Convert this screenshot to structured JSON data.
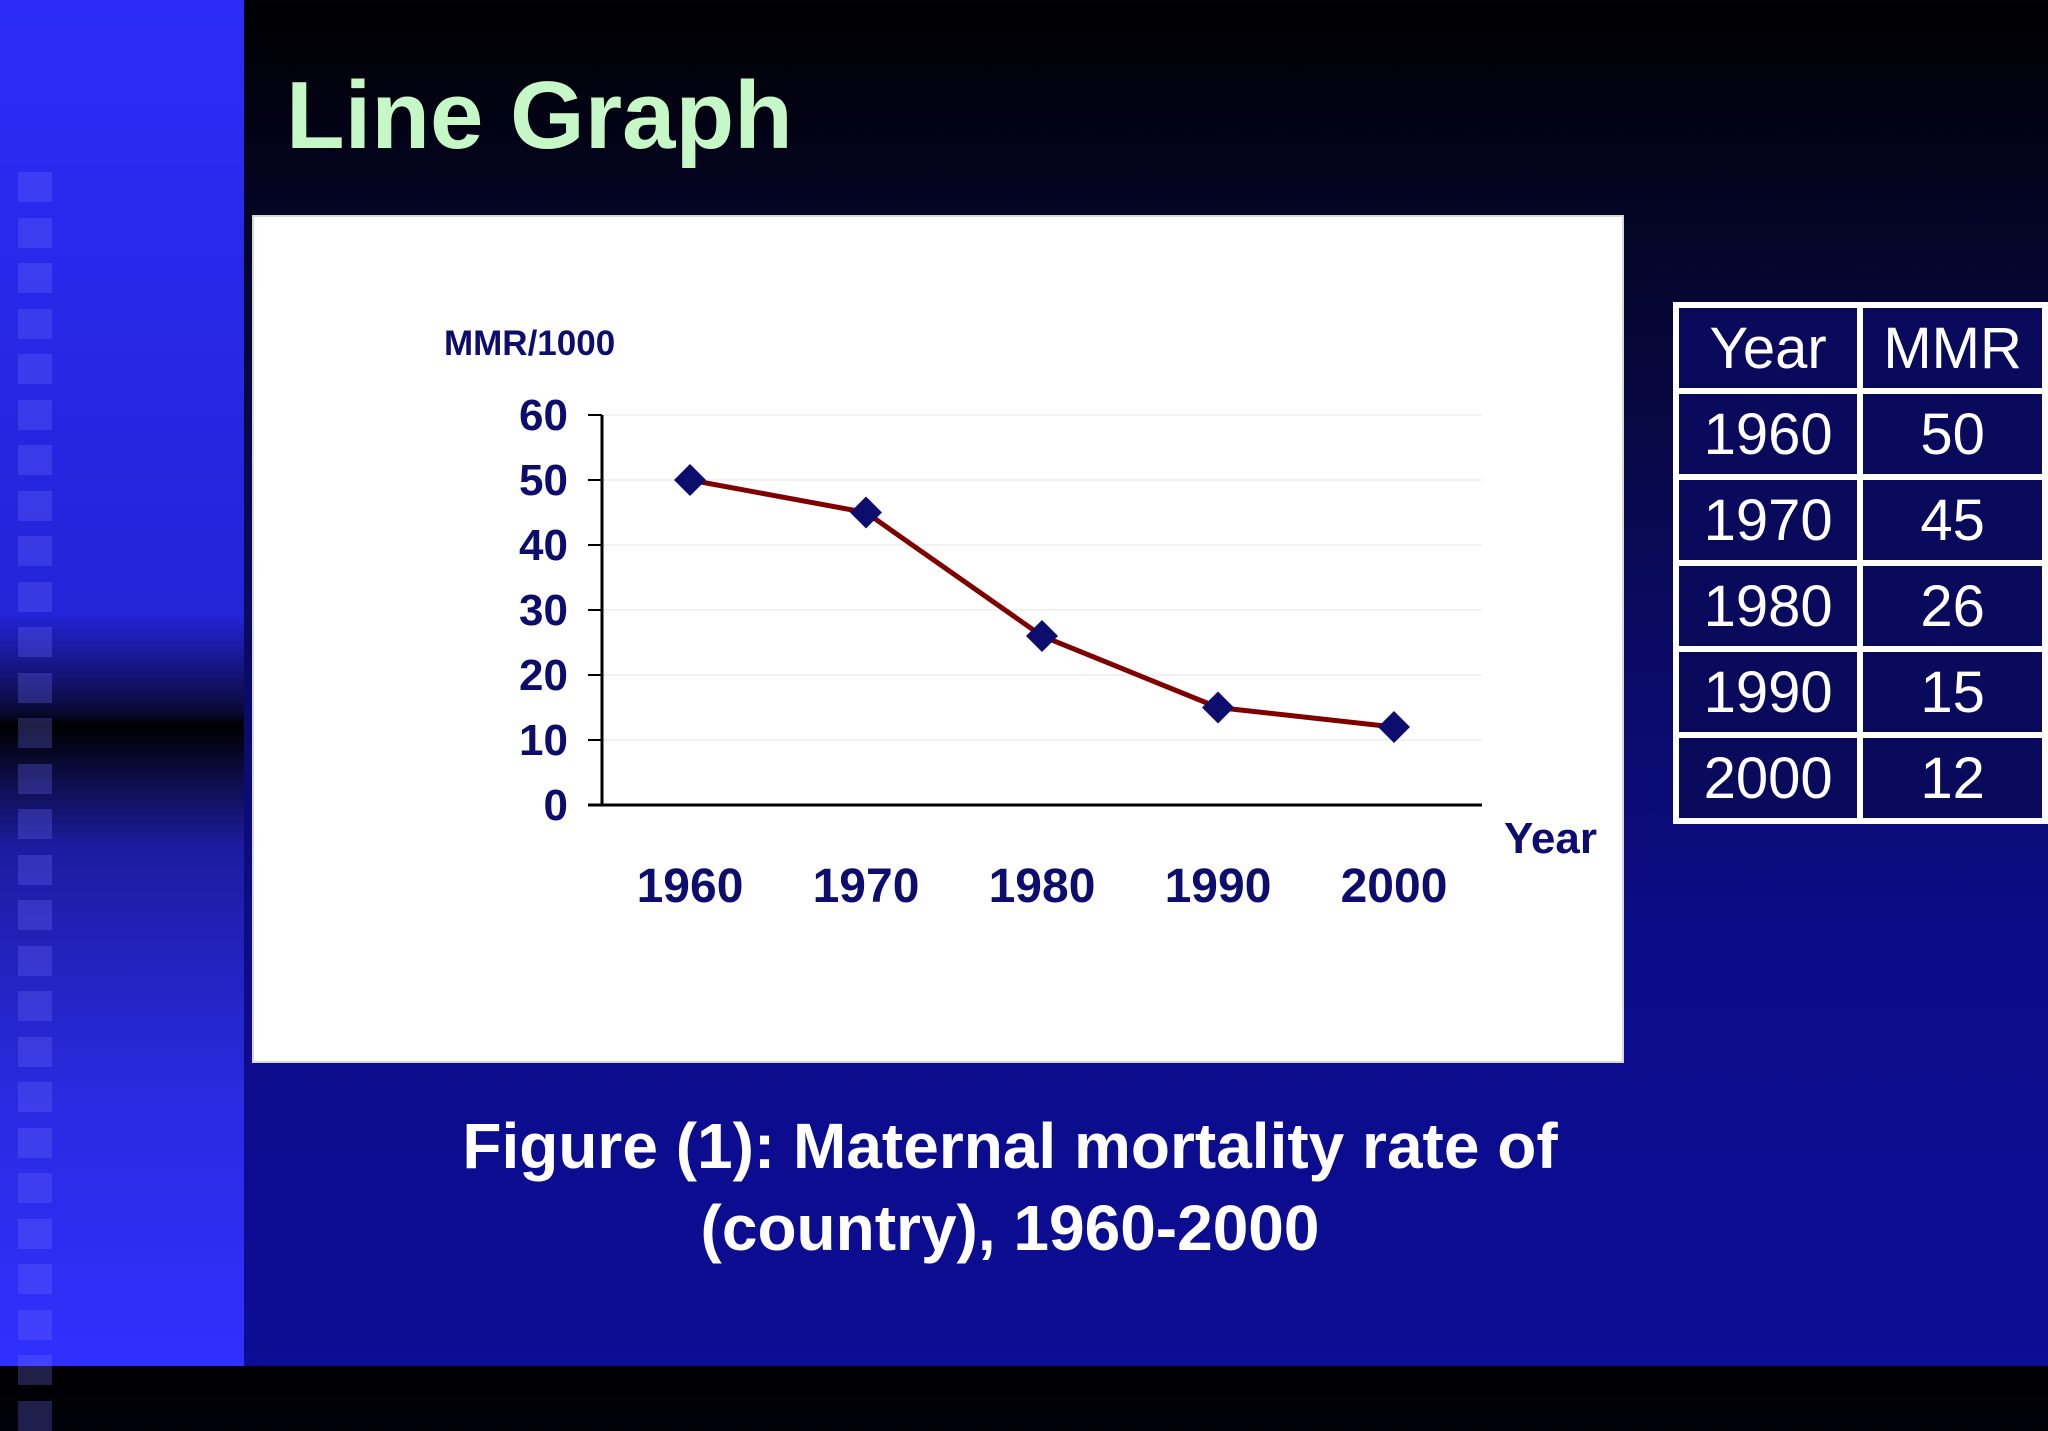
{
  "slide": {
    "title": "Line Graph",
    "caption_line1": "Figure (1): Maternal mortality rate of",
    "caption_line2": "(country), 1960-2000"
  },
  "colors": {
    "title": "#c6f7c6",
    "line": "#800000",
    "markers": "#0d0d6e",
    "axis_text": "#0d0d6e"
  },
  "chart_data": {
    "type": "line",
    "title": "",
    "xlabel": "Year",
    "ylabel": "MMR/1000",
    "categories": [
      "1960",
      "1970",
      "1980",
      "1990",
      "2000"
    ],
    "yticks": [
      "0",
      "10",
      "20",
      "30",
      "40",
      "50",
      "60"
    ],
    "ylim": [
      0,
      60
    ],
    "grid": true,
    "marker": "diamond",
    "series": [
      {
        "values": [
          50,
          45,
          26,
          15,
          12
        ]
      }
    ]
  },
  "table": {
    "headers": [
      "Year",
      "MMR"
    ],
    "rows": [
      [
        "1960",
        "50"
      ],
      [
        "1970",
        "45"
      ],
      [
        "1980",
        "26"
      ],
      [
        "1990",
        "15"
      ],
      [
        "2000",
        "12"
      ]
    ]
  }
}
